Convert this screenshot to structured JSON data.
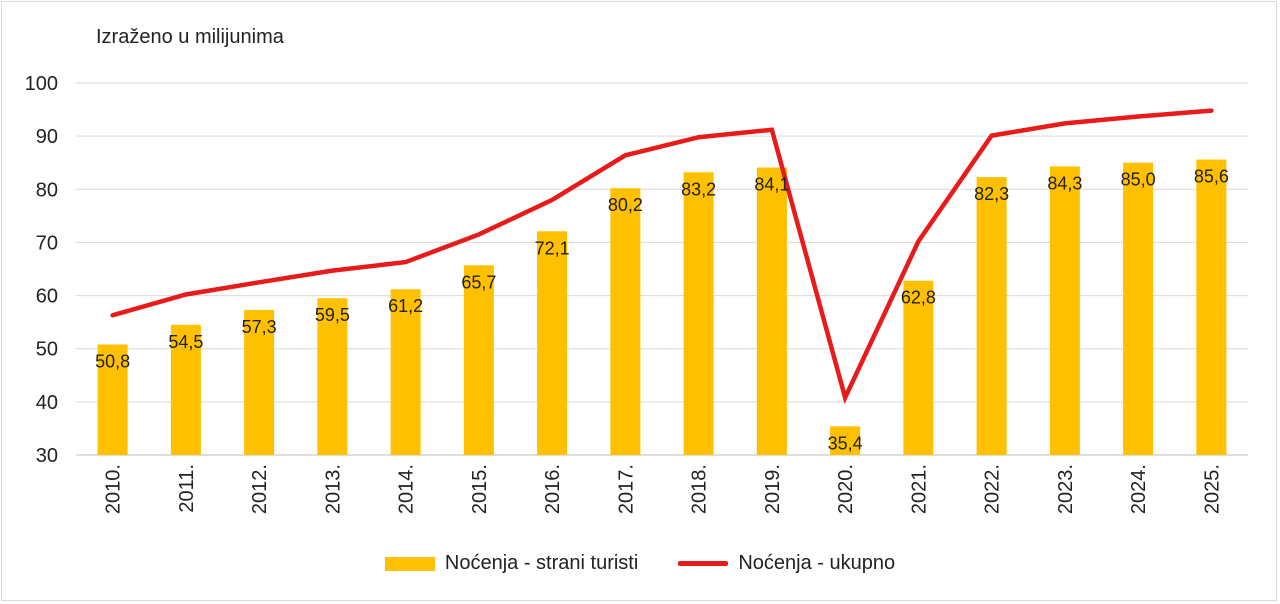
{
  "chart_data": {
    "type": "bar+line",
    "unit_label": "Izraženo u milijunima",
    "categories": [
      "2010.",
      "2011.",
      "2012.",
      "2013.",
      "2014.",
      "2015.",
      "2016.",
      "2017.",
      "2018.",
      "2019.",
      "2020.",
      "2021.",
      "2022.",
      "2023.",
      "2024.",
      "2025."
    ],
    "series": [
      {
        "name": "Noćenja - strani turisti",
        "kind": "bar",
        "color": "#ffc000",
        "values": [
          50.8,
          54.5,
          57.3,
          59.5,
          61.2,
          65.7,
          72.1,
          80.2,
          83.2,
          84.1,
          35.4,
          62.8,
          82.3,
          84.3,
          85.0,
          85.6
        ],
        "labels": [
          "50,8",
          "54,5",
          "57,3",
          "59,5",
          "61,2",
          "65,7",
          "72,1",
          "80,2",
          "83,2",
          "84,1",
          "35,4",
          "62,8",
          "82,3",
          "84,3",
          "85,0",
          "85,6"
        ]
      },
      {
        "name": "Noćenja - ukupno",
        "kind": "line",
        "color": "#e81a1a",
        "values": [
          56.3,
          60.2,
          62.5,
          64.7,
          66.3,
          71.5,
          78.0,
          86.4,
          89.8,
          91.2,
          40.8,
          70.2,
          90.1,
          92.4,
          93.7,
          94.8
        ]
      }
    ],
    "ylim": [
      30,
      100
    ],
    "yticks": [
      "30",
      "40",
      "50",
      "60",
      "70",
      "80",
      "90",
      "100"
    ],
    "grid": true,
    "legend_position": "bottom"
  }
}
